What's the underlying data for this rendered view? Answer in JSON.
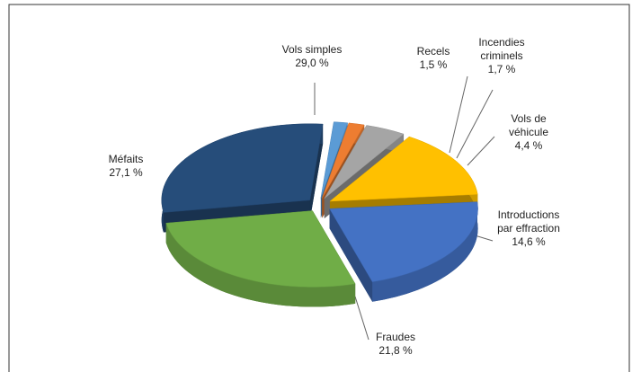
{
  "chart_data": {
    "type": "pie",
    "categories": [
      "Recels",
      "Incendies criminels",
      "Vols de véhicule",
      "Introductions par effraction",
      "Fraudes",
      "Méfaits",
      "Vols simples"
    ],
    "values": [
      1.5,
      1.7,
      4.4,
      14.6,
      21.8,
      27.1,
      29.0
    ],
    "value_labels": [
      "1,5 %",
      "1,7 %",
      "4,4 %",
      "14,6 %",
      "21,8 %",
      "27,1 %",
      "29,0 %"
    ],
    "colors": [
      "#5b9bd5",
      "#ed7d31",
      "#a5a5a5",
      "#ffc000",
      "#4472c4",
      "#70ad47",
      "#264d7a"
    ],
    "three_d": true,
    "exploded": true
  }
}
